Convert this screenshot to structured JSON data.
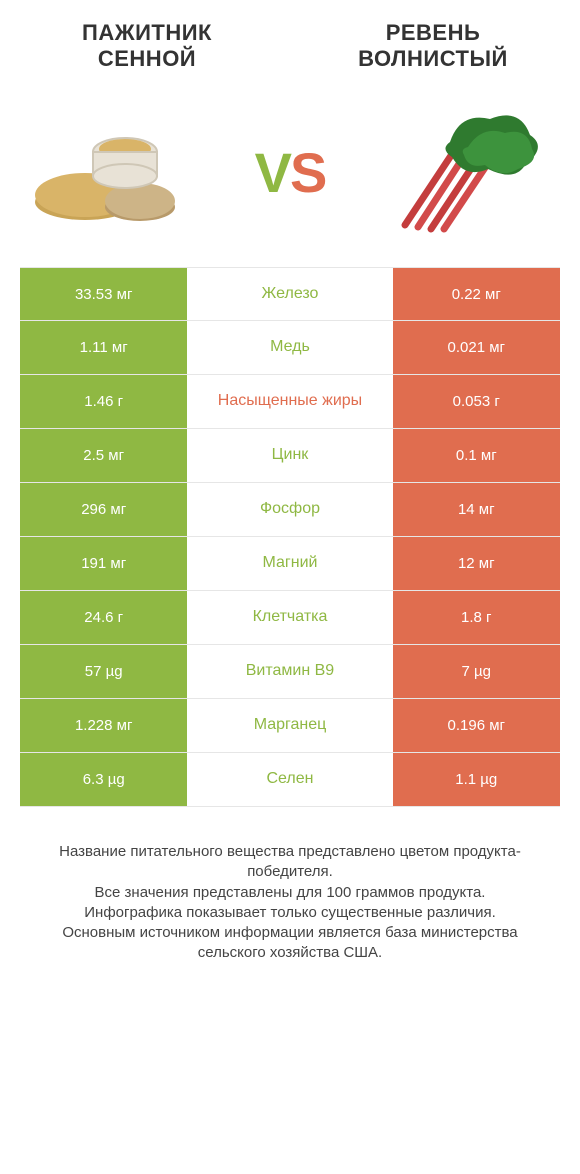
{
  "colors": {
    "green": "#8fb843",
    "orange": "#e06d4f",
    "text": "#333333",
    "border": "#e6e6e6"
  },
  "header": {
    "left": "Пажитник сенной",
    "right": "Ревень волнистый"
  },
  "vs": {
    "v": "V",
    "s": "S"
  },
  "rows": [
    {
      "left": "33.53 мг",
      "label": "Железо",
      "right": "0.22 мг",
      "winner": "green"
    },
    {
      "left": "1.11 мг",
      "label": "Медь",
      "right": "0.021 мг",
      "winner": "green"
    },
    {
      "left": "1.46 г",
      "label": "Насыщенные жиры",
      "right": "0.053 г",
      "winner": "orange"
    },
    {
      "left": "2.5 мг",
      "label": "Цинк",
      "right": "0.1 мг",
      "winner": "green"
    },
    {
      "left": "296 мг",
      "label": "Фосфор",
      "right": "14 мг",
      "winner": "green"
    },
    {
      "left": "191 мг",
      "label": "Магний",
      "right": "12 мг",
      "winner": "green"
    },
    {
      "left": "24.6 г",
      "label": "Клетчатка",
      "right": "1.8 г",
      "winner": "green"
    },
    {
      "left": "57 µg",
      "label": "Витамин B9",
      "right": "7 µg",
      "winner": "green"
    },
    {
      "left": "1.228 мг",
      "label": "Марганец",
      "right": "0.196 мг",
      "winner": "green"
    },
    {
      "left": "6.3 µg",
      "label": "Селен",
      "right": "1.1 µg",
      "winner": "green"
    }
  ],
  "footer": {
    "line1": "Название питательного вещества представлено цветом продукта-победителя.",
    "line2": "Все значения представлены для 100 граммов продукта.",
    "line3": "Инфографика показывает только существенные различия.",
    "line4": "Основным источником информации является база министерства сельского хозяйства США."
  }
}
